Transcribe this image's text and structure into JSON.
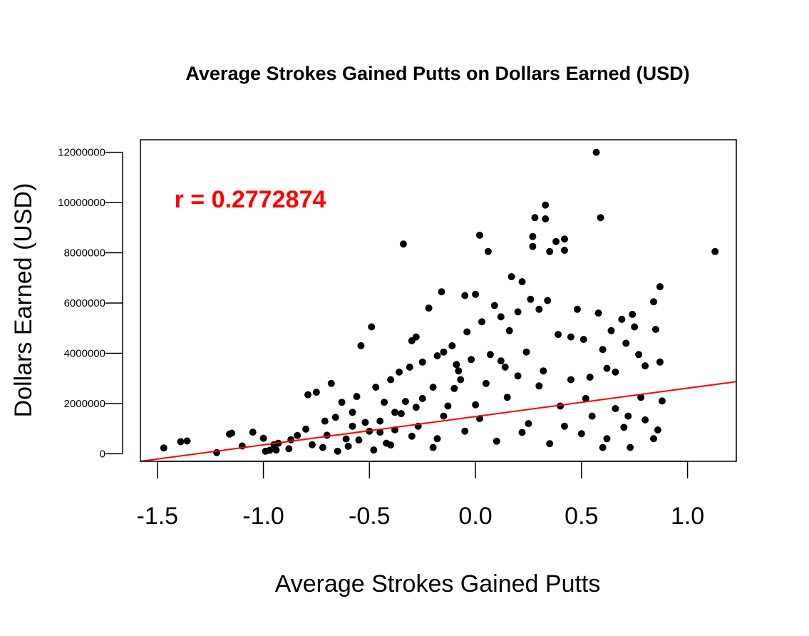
{
  "chart_data": {
    "type": "scatter",
    "title": "Average Strokes Gained Putts on Dollars Earned (USD)",
    "xlabel": "Average Strokes Gained Putts",
    "ylabel": "Dollars Earned (USD)",
    "xlim": [
      -1.58,
      1.23
    ],
    "ylim": [
      -300000,
      12500000
    ],
    "xticks": [
      -1.5,
      -1.0,
      -0.5,
      0.0,
      0.5,
      1.0
    ],
    "xtick_labels": [
      "-1.5",
      "-1.0",
      "-0.5",
      "0.0",
      "0.5",
      "1.0"
    ],
    "yticks": [
      0,
      2000000,
      4000000,
      6000000,
      8000000,
      10000000,
      12000000
    ],
    "ytick_labels": [
      "0",
      "2000000",
      "4000000",
      "6000000",
      "8000000",
      "10000000",
      "12000000"
    ],
    "grid": false,
    "point_color": "#000000",
    "annotation": {
      "text": "r = 0.2772874",
      "color": "#ff0000",
      "x": -1.42,
      "y": 9800000
    },
    "regression_line": {
      "color": "#ff0000",
      "x": [
        -1.58,
        1.23
      ],
      "y": [
        -300000,
        2870000
      ]
    },
    "points": [
      {
        "x": -1.47,
        "y": 230000
      },
      {
        "x": -1.39,
        "y": 480000
      },
      {
        "x": -1.36,
        "y": 510000
      },
      {
        "x": -1.22,
        "y": 50000
      },
      {
        "x": -1.16,
        "y": 780000
      },
      {
        "x": -1.15,
        "y": 820000
      },
      {
        "x": -1.1,
        "y": 310000
      },
      {
        "x": -1.05,
        "y": 860000
      },
      {
        "x": -1.0,
        "y": 620000
      },
      {
        "x": -0.99,
        "y": 100000
      },
      {
        "x": -0.97,
        "y": 140000
      },
      {
        "x": -0.95,
        "y": 360000
      },
      {
        "x": -0.94,
        "y": 150000
      },
      {
        "x": -0.93,
        "y": 420000
      },
      {
        "x": -0.88,
        "y": 200000
      },
      {
        "x": -0.87,
        "y": 560000
      },
      {
        "x": -0.84,
        "y": 730000
      },
      {
        "x": -0.8,
        "y": 980000
      },
      {
        "x": -0.79,
        "y": 2350000
      },
      {
        "x": -0.77,
        "y": 360000
      },
      {
        "x": -0.75,
        "y": 2450000
      },
      {
        "x": -0.72,
        "y": 250000
      },
      {
        "x": -0.71,
        "y": 1300000
      },
      {
        "x": -0.7,
        "y": 740000
      },
      {
        "x": -0.68,
        "y": 2800000
      },
      {
        "x": -0.66,
        "y": 1450000
      },
      {
        "x": -0.63,
        "y": 2050000
      },
      {
        "x": -0.61,
        "y": 590000
      },
      {
        "x": -0.58,
        "y": 1650000
      },
      {
        "x": -0.56,
        "y": 2280000
      },
      {
        "x": -0.54,
        "y": 4300000
      },
      {
        "x": -0.52,
        "y": 1250000
      },
      {
        "x": -0.49,
        "y": 5050000
      },
      {
        "x": -0.47,
        "y": 2650000
      },
      {
        "x": -0.45,
        "y": 860000
      },
      {
        "x": -0.43,
        "y": 2050000
      },
      {
        "x": -0.42,
        "y": 420000
      },
      {
        "x": -0.4,
        "y": 2950000
      },
      {
        "x": -0.38,
        "y": 1650000
      },
      {
        "x": -0.36,
        "y": 3250000
      },
      {
        "x": -0.34,
        "y": 8350000
      },
      {
        "x": -0.33,
        "y": 2080000
      },
      {
        "x": -0.31,
        "y": 3450000
      },
      {
        "x": -0.3,
        "y": 4500000
      },
      {
        "x": -0.28,
        "y": 4650000
      },
      {
        "x": -0.27,
        "y": 1100000
      },
      {
        "x": -0.25,
        "y": 3650000
      },
      {
        "x": -0.22,
        "y": 5800000
      },
      {
        "x": -0.2,
        "y": 2650000
      },
      {
        "x": -0.18,
        "y": 3900000
      },
      {
        "x": -0.16,
        "y": 6450000
      },
      {
        "x": -0.15,
        "y": 4050000
      },
      {
        "x": -0.13,
        "y": 1900000
      },
      {
        "x": -0.11,
        "y": 4300000
      },
      {
        "x": -0.09,
        "y": 3550000
      },
      {
        "x": -0.07,
        "y": 2950000
      },
      {
        "x": -0.05,
        "y": 6300000
      },
      {
        "x": -0.04,
        "y": 4850000
      },
      {
        "x": -0.02,
        "y": 3750000
      },
      {
        "x": 0.0,
        "y": 6350000
      },
      {
        "x": 0.02,
        "y": 8700000
      },
      {
        "x": 0.03,
        "y": 5250000
      },
      {
        "x": 0.06,
        "y": 8050000
      },
      {
        "x": 0.07,
        "y": 3950000
      },
      {
        "x": 0.09,
        "y": 5900000
      },
      {
        "x": 0.12,
        "y": 5450000
      },
      {
        "x": 0.14,
        "y": 3450000
      },
      {
        "x": 0.16,
        "y": 4900000
      },
      {
        "x": 0.17,
        "y": 7050000
      },
      {
        "x": 0.2,
        "y": 5650000
      },
      {
        "x": 0.22,
        "y": 6850000
      },
      {
        "x": 0.24,
        "y": 4050000
      },
      {
        "x": 0.26,
        "y": 6150000
      },
      {
        "x": 0.27,
        "y": 8650000
      },
      {
        "x": 0.27,
        "y": 8250000
      },
      {
        "x": 0.28,
        "y": 9400000
      },
      {
        "x": 0.3,
        "y": 5750000
      },
      {
        "x": 0.33,
        "y": 9900000
      },
      {
        "x": 0.33,
        "y": 9350000
      },
      {
        "x": 0.34,
        "y": 6100000
      },
      {
        "x": 0.35,
        "y": 8050000
      },
      {
        "x": 0.38,
        "y": 8450000
      },
      {
        "x": 0.39,
        "y": 4750000
      },
      {
        "x": 0.42,
        "y": 8550000
      },
      {
        "x": 0.42,
        "y": 8100000
      },
      {
        "x": 0.45,
        "y": 4650000
      },
      {
        "x": 0.48,
        "y": 5750000
      },
      {
        "x": 0.51,
        "y": 4550000
      },
      {
        "x": 0.54,
        "y": 3050000
      },
      {
        "x": 0.57,
        "y": 12000000
      },
      {
        "x": 0.58,
        "y": 5600000
      },
      {
        "x": 0.59,
        "y": 9400000
      },
      {
        "x": 0.6,
        "y": 4150000
      },
      {
        "x": 0.62,
        "y": 3400000
      },
      {
        "x": 0.64,
        "y": 4900000
      },
      {
        "x": 0.66,
        "y": 3250000
      },
      {
        "x": 0.69,
        "y": 5350000
      },
      {
        "x": 0.71,
        "y": 4400000
      },
      {
        "x": 0.74,
        "y": 5550000
      },
      {
        "x": 0.75,
        "y": 5050000
      },
      {
        "x": 0.77,
        "y": 3950000
      },
      {
        "x": 0.8,
        "y": 3500000
      },
      {
        "x": 0.84,
        "y": 6050000
      },
      {
        "x": 0.85,
        "y": 4950000
      },
      {
        "x": 0.87,
        "y": 6650000
      },
      {
        "x": 0.87,
        "y": 3650000
      },
      {
        "x": 0.88,
        "y": 2100000
      },
      {
        "x": 0.86,
        "y": 950000
      },
      {
        "x": 0.84,
        "y": 600000
      },
      {
        "x": 0.8,
        "y": 1350000
      },
      {
        "x": 0.78,
        "y": 2250000
      },
      {
        "x": 0.73,
        "y": 250000
      },
      {
        "x": 0.7,
        "y": 1050000
      },
      {
        "x": 0.66,
        "y": 1800000
      },
      {
        "x": 1.13,
        "y": 8050000
      },
      {
        "x": -0.6,
        "y": 300000
      },
      {
        "x": -0.55,
        "y": 550000
      },
      {
        "x": -0.5,
        "y": 900000
      },
      {
        "x": -0.45,
        "y": 1300000
      },
      {
        "x": -0.4,
        "y": 350000
      },
      {
        "x": -0.35,
        "y": 1600000
      },
      {
        "x": -0.3,
        "y": 700000
      },
      {
        "x": -0.25,
        "y": 2200000
      },
      {
        "x": -0.2,
        "y": 250000
      },
      {
        "x": -0.15,
        "y": 1500000
      },
      {
        "x": -0.1,
        "y": 2600000
      },
      {
        "x": -0.05,
        "y": 900000
      },
      {
        "x": 0.0,
        "y": 1950000
      },
      {
        "x": 0.05,
        "y": 2800000
      },
      {
        "x": 0.1,
        "y": 500000
      },
      {
        "x": 0.15,
        "y": 2250000
      },
      {
        "x": 0.2,
        "y": 3100000
      },
      {
        "x": 0.25,
        "y": 1200000
      },
      {
        "x": 0.3,
        "y": 2700000
      },
      {
        "x": 0.35,
        "y": 400000
      },
      {
        "x": 0.4,
        "y": 1900000
      },
      {
        "x": 0.45,
        "y": 2950000
      },
      {
        "x": 0.5,
        "y": 800000
      },
      {
        "x": 0.55,
        "y": 1500000
      },
      {
        "x": 0.6,
        "y": 250000
      },
      {
        "x": -0.65,
        "y": 100000
      },
      {
        "x": -0.58,
        "y": 1100000
      },
      {
        "x": -0.48,
        "y": 150000
      },
      {
        "x": -0.38,
        "y": 950000
      },
      {
        "x": -0.28,
        "y": 1850000
      },
      {
        "x": -0.18,
        "y": 600000
      },
      {
        "x": -0.08,
        "y": 3300000
      },
      {
        "x": 0.02,
        "y": 1400000
      },
      {
        "x": 0.12,
        "y": 3700000
      },
      {
        "x": 0.22,
        "y": 850000
      },
      {
        "x": 0.32,
        "y": 3300000
      },
      {
        "x": 0.42,
        "y": 1100000
      },
      {
        "x": 0.52,
        "y": 2200000
      },
      {
        "x": 0.62,
        "y": 600000
      },
      {
        "x": 0.72,
        "y": 1500000
      }
    ]
  }
}
